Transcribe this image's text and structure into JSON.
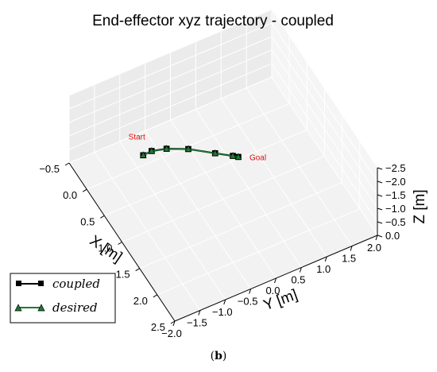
{
  "chart_data": {
    "type": "line3d",
    "title": "End-effector xyz trajectory - coupled",
    "xlabel": "X [m]",
    "ylabel": "Y [m]",
    "zlabel": "Z [m]",
    "xlim": [
      -0.5,
      2.5
    ],
    "ylim": [
      -2.0,
      2.0
    ],
    "zlim": [
      -2.5,
      0.0
    ],
    "xticks": [
      "−0.5",
      "0.0",
      "0.5",
      "1.0",
      "1.5",
      "2.0",
      "2.5"
    ],
    "yticks": [
      "−2.0",
      "−1.5",
      "−1.0",
      "−0.5",
      "0.0",
      "0.5",
      "1.0",
      "1.5",
      "2.0"
    ],
    "zticks": [
      "0.0",
      "−0.5",
      "−1.0",
      "−1.5",
      "−2.0",
      "−2.5"
    ],
    "grid": true,
    "legend_position": "bottom-left",
    "series": [
      {
        "name": "coupled",
        "color": "#000000",
        "marker": "square",
        "points": [
          {
            "x": 0.05,
            "y": -0.92,
            "z": -0.5
          },
          {
            "x": 0.16,
            "y": -0.83,
            "z": -0.8
          },
          {
            "x": 0.34,
            "y": -0.66,
            "z": -1.1
          },
          {
            "x": 0.64,
            "y": -0.44,
            "z": -1.5
          },
          {
            "x": 0.97,
            "y": -0.14,
            "z": -1.75
          },
          {
            "x": 1.2,
            "y": 0.05,
            "z": -1.95
          },
          {
            "x": 1.27,
            "y": 0.11,
            "z": -2.0
          }
        ]
      },
      {
        "name": "desired",
        "color": "#1f7a35",
        "marker": "triangle",
        "points": [
          {
            "x": 0.05,
            "y": -0.92,
            "z": -0.5
          },
          {
            "x": 0.16,
            "y": -0.83,
            "z": -0.8
          },
          {
            "x": 0.34,
            "y": -0.66,
            "z": -1.1
          },
          {
            "x": 0.64,
            "y": -0.44,
            "z": -1.5
          },
          {
            "x": 0.97,
            "y": -0.14,
            "z": -1.75
          },
          {
            "x": 1.2,
            "y": 0.05,
            "z": -1.95
          },
          {
            "x": 1.27,
            "y": 0.11,
            "z": -2.0
          }
        ]
      }
    ],
    "annotations": [
      {
        "text": "Start",
        "color": "#e01010"
      },
      {
        "text": "Goal",
        "color": "#e01010"
      }
    ]
  },
  "caption": {
    "open": "(",
    "label": "b",
    "close": ")"
  }
}
